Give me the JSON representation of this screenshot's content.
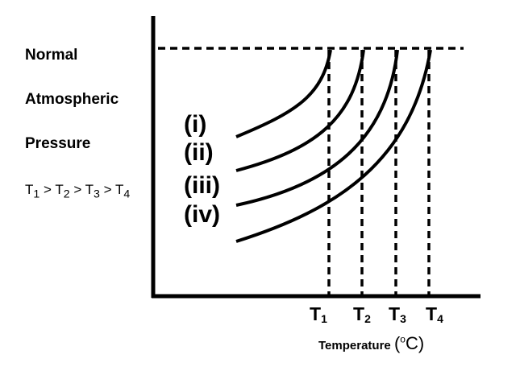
{
  "side_text": {
    "line1": "Normal",
    "line2": "Atmospheric",
    "line3": "Pressure"
  },
  "inequality": [
    "T",
    "1",
    " > T",
    "2",
    " > T",
    "3",
    " > T",
    "4"
  ],
  "curve_labels": [
    "(i)",
    "(ii)",
    "(iii)",
    "(iv)"
  ],
  "ticks": [
    {
      "main": "T",
      "sub": "1"
    },
    {
      "main": "T",
      "sub": "2"
    },
    {
      "main": "T",
      "sub": "3"
    },
    {
      "main": "T",
      "sub": "4"
    }
  ],
  "axis_title": {
    "text": "Temperature",
    "unit_open": "(",
    "unit_deg": "o",
    "unit_rest": "C)"
  }
}
